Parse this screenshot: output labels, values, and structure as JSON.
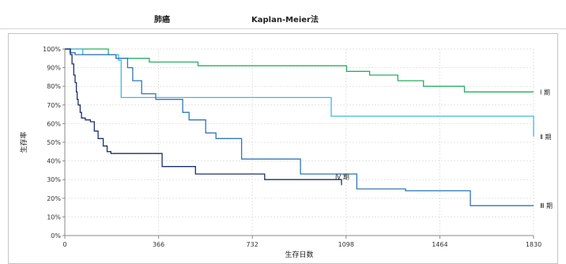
{
  "header": {
    "title_left": "肺癌",
    "title_right": "Kaplan-Meier法"
  },
  "chart_data": {
    "type": "line",
    "step": true,
    "xlabel": "生存日数",
    "ylabel": "生存率",
    "xlim": [
      0,
      1830
    ],
    "ylim": [
      0,
      100
    ],
    "x_ticks": [
      0,
      366,
      732,
      1098,
      1464,
      1830
    ],
    "x_tick_labels": [
      "0",
      "366",
      "732",
      "1098",
      "1464",
      "1830"
    ],
    "y_ticks": [
      0,
      10,
      20,
      30,
      40,
      50,
      60,
      70,
      80,
      90,
      100
    ],
    "y_tick_labels": [
      "0%",
      "10%",
      "20%",
      "30%",
      "40%",
      "50%",
      "60%",
      "70%",
      "80%",
      "90%",
      "100%"
    ],
    "grid": true,
    "series": [
      {
        "name": "Ⅰ 期",
        "color": "#27ae60",
        "points": [
          [
            0,
            100
          ],
          [
            170,
            97
          ],
          [
            200,
            95
          ],
          [
            330,
            93
          ],
          [
            520,
            91
          ],
          [
            1100,
            88
          ],
          [
            1190,
            86
          ],
          [
            1300,
            83
          ],
          [
            1400,
            80
          ],
          [
            1560,
            77
          ],
          [
            1830,
            77
          ]
        ]
      },
      {
        "name": "Ⅱ 期",
        "color": "#3cb8e6",
        "points": [
          [
            0,
            100
          ],
          [
            70,
            97
          ],
          [
            210,
            94
          ],
          [
            220,
            74
          ],
          [
            950,
            74
          ],
          [
            1040,
            64
          ],
          [
            1830,
            53
          ],
          [
            1830,
            53
          ]
        ]
      },
      {
        "name": "Ⅲ 期",
        "color": "#2f77b5",
        "points": [
          [
            0,
            100
          ],
          [
            20,
            98
          ],
          [
            40,
            97
          ],
          [
            200,
            95
          ],
          [
            245,
            90
          ],
          [
            265,
            83
          ],
          [
            300,
            76
          ],
          [
            355,
            73
          ],
          [
            460,
            66
          ],
          [
            485,
            62
          ],
          [
            550,
            55
          ],
          [
            590,
            52
          ],
          [
            690,
            41
          ],
          [
            920,
            33
          ],
          [
            1140,
            25
          ],
          [
            1330,
            24
          ],
          [
            1583,
            16
          ],
          [
            1830,
            16
          ]
        ]
      },
      {
        "name": "Ⅳ 期",
        "color": "#1b2f6b",
        "points": [
          [
            0,
            100
          ],
          [
            22,
            97
          ],
          [
            28,
            92
          ],
          [
            35,
            86
          ],
          [
            40,
            82
          ],
          [
            45,
            77
          ],
          [
            48,
            73
          ],
          [
            52,
            70
          ],
          [
            60,
            66
          ],
          [
            65,
            63
          ],
          [
            80,
            62
          ],
          [
            100,
            61
          ],
          [
            115,
            56
          ],
          [
            130,
            52
          ],
          [
            150,
            48
          ],
          [
            165,
            45
          ],
          [
            180,
            44
          ],
          [
            360,
            44
          ],
          [
            380,
            37
          ],
          [
            500,
            37
          ],
          [
            510,
            33
          ],
          [
            780,
            30
          ],
          [
            1080,
            27
          ]
        ]
      }
    ]
  }
}
